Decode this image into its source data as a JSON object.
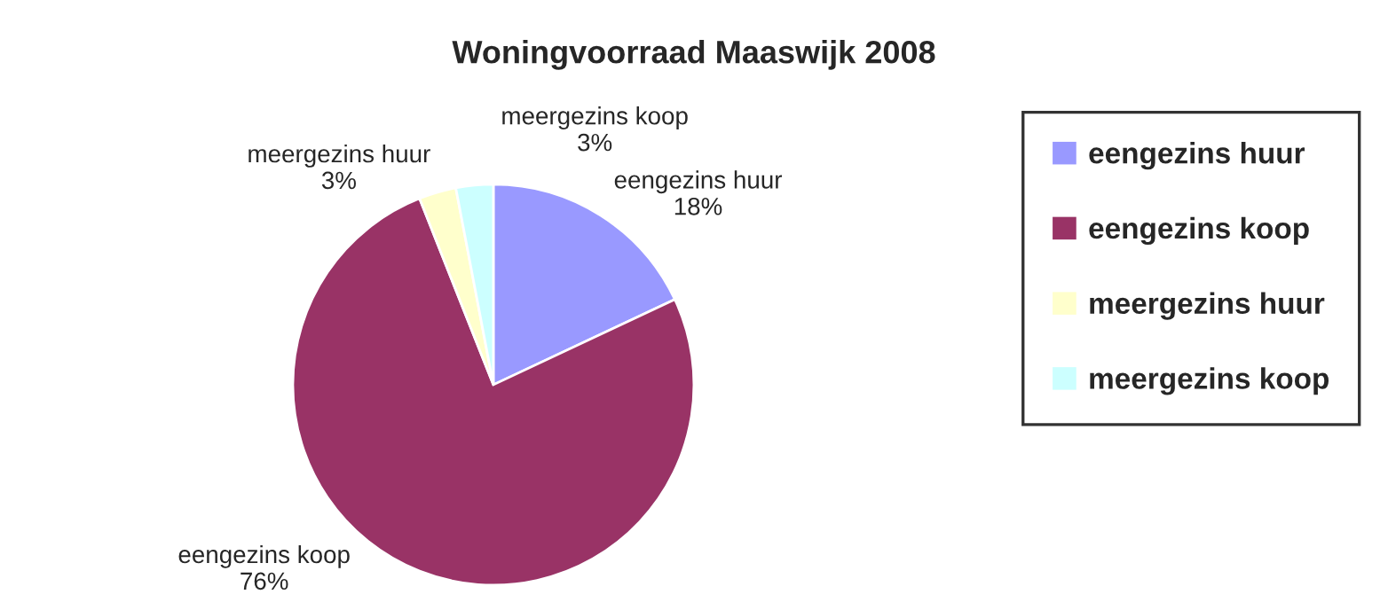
{
  "chart_data": {
    "type": "pie",
    "title": "Woningvoorraad Maaswijk 2008",
    "categories": [
      "eengezins huur",
      "eengezins koop",
      "meergezins huur",
      "meergezins koop"
    ],
    "values": [
      18,
      76,
      3,
      3
    ],
    "value_labels": [
      "18%",
      "76%",
      "3%",
      "3%"
    ],
    "colors": [
      "#9999ff",
      "#993366",
      "#ffffcc",
      "#ccffff"
    ],
    "legend": "right"
  }
}
